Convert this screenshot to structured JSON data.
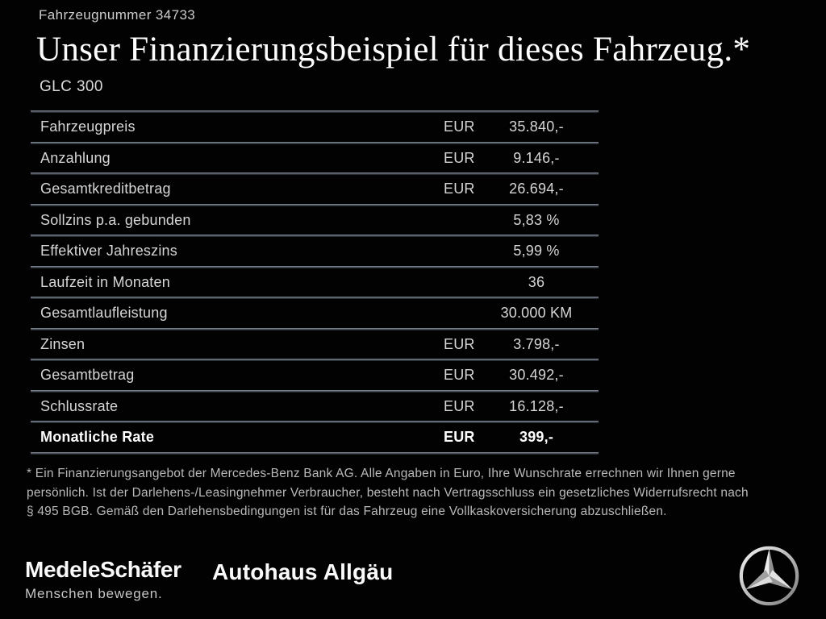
{
  "header": {
    "vehicle_number": "Fahrzeugnummer 34733",
    "title": "Unser Finanzierungsbeispiel für dieses Fahrzeug.*",
    "model": "GLC 300"
  },
  "table": {
    "rows": [
      {
        "label": "Fahrzeugpreis",
        "currency": "EUR",
        "value": "35.840,-",
        "bold": false
      },
      {
        "label": "Anzahlung",
        "currency": "EUR",
        "value": "9.146,-",
        "bold": false
      },
      {
        "label": "Gesamtkreditbetrag",
        "currency": "EUR",
        "value": "26.694,-",
        "bold": false
      },
      {
        "label": "Sollzins p.a. gebunden",
        "currency": "",
        "value": "5,83 %",
        "bold": false
      },
      {
        "label": "Effektiver Jahreszins",
        "currency": "",
        "value": "5,99 %",
        "bold": false
      },
      {
        "label": "Laufzeit in Monaten",
        "currency": "",
        "value": "36",
        "bold": false
      },
      {
        "label": "Gesamtlaufleistung",
        "currency": "",
        "value": "30.000 KM",
        "bold": false
      },
      {
        "label": "Zinsen",
        "currency": "EUR",
        "value": "3.798,-",
        "bold": false
      },
      {
        "label": "Gesamtbetrag",
        "currency": "EUR",
        "value": "30.492,-",
        "bold": false
      },
      {
        "label": "Schlussrate",
        "currency": "EUR",
        "value": "16.128,-",
        "bold": false
      },
      {
        "label": "Monatliche Rate",
        "currency": "EUR",
        "value": "399,-",
        "bold": true
      }
    ]
  },
  "footnote": {
    "lines": [
      "* Ein Finanzierungsangebot der Mercedes-Benz Bank AG. Alle Angaben in Euro, Ihre Wunschrate errechnen wir Ihnen gerne",
      "persönlich. Ist der Darlehens-/Leasingnehmer Verbraucher, besteht nach Vertragsschluss ein gesetzliches Widerrufsrecht nach",
      "§ 495 BGB. Gemäß den Darlehensbedingungen ist für das Fahrzeug eine Vollkaskoversicherung abzuschließen."
    ]
  },
  "footer": {
    "dealer1_name": "MedeleSchäfer",
    "dealer1_tagline": "Menschen bewegen.",
    "dealer2_name": "Autohaus Allgäu",
    "brand_icon": "mercedes-star-icon"
  },
  "colors": {
    "background": "#000000",
    "title_text": "#fdfdfd",
    "body_text": "#d6d6d6",
    "muted_text": "#b9b9b9",
    "divider_light": "#8b949f",
    "star_silver": "#d9d9d9"
  }
}
